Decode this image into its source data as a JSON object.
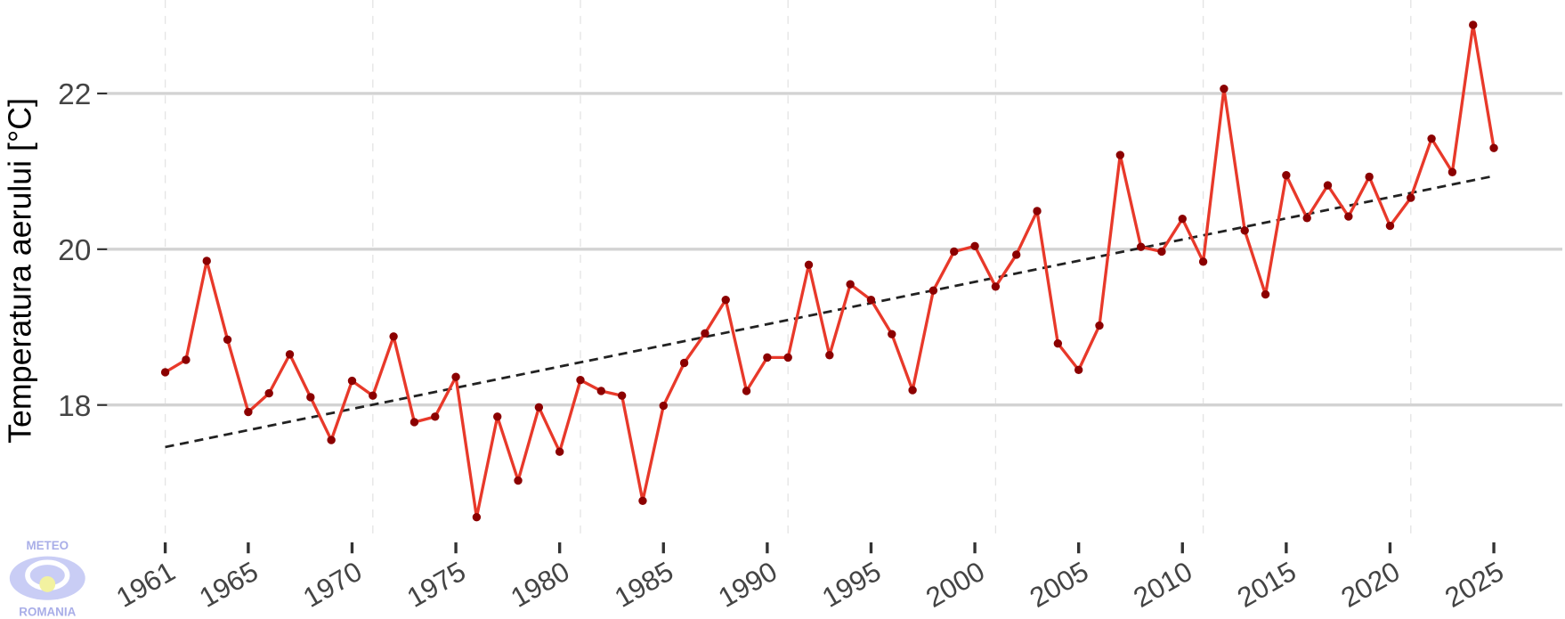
{
  "chart_data": {
    "type": "line",
    "y_label": "Temperatura aerului [°C]",
    "logo_top": "METEO",
    "logo_bottom": "ROMANIA",
    "x": [
      1961,
      1962,
      1963,
      1964,
      1965,
      1966,
      1967,
      1968,
      1969,
      1970,
      1971,
      1972,
      1973,
      1974,
      1975,
      1976,
      1977,
      1978,
      1979,
      1980,
      1981,
      1982,
      1983,
      1984,
      1985,
      1986,
      1987,
      1988,
      1989,
      1990,
      1991,
      1992,
      1993,
      1994,
      1995,
      1996,
      1997,
      1998,
      1999,
      2000,
      2001,
      2002,
      2003,
      2004,
      2005,
      2006,
      2007,
      2008,
      2009,
      2010,
      2011,
      2012,
      2013,
      2014,
      2015,
      2016,
      2017,
      2018,
      2019,
      2020,
      2021,
      2022,
      2023,
      2024,
      2025
    ],
    "series": [
      {
        "color": "#e8392a",
        "marker_color": "#8b0000",
        "values": [
          18.42,
          18.58,
          19.85,
          18.84,
          17.91,
          18.15,
          18.65,
          18.1,
          17.55,
          18.31,
          18.12,
          18.88,
          17.78,
          17.85,
          18.36,
          16.56,
          17.85,
          17.03,
          17.97,
          17.4,
          18.32,
          18.18,
          18.12,
          16.77,
          17.99,
          18.54,
          18.92,
          19.35,
          18.18,
          18.61,
          18.61,
          19.8,
          18.64,
          19.55,
          19.35,
          18.91,
          18.19,
          19.47,
          19.97,
          20.04,
          19.52,
          19.93,
          20.49,
          18.79,
          18.45,
          19.02,
          21.21,
          20.03,
          19.97,
          20.39,
          19.84,
          22.06,
          20.24,
          19.42,
          20.95,
          20.4,
          20.82,
          20.42,
          20.93,
          20.3,
          20.66,
          21.42,
          20.99,
          22.88,
          21.3
        ]
      }
    ],
    "trend": {
      "x": [
        1961,
        2025
      ],
      "values": [
        17.46,
        20.94
      ],
      "color": "#222222"
    },
    "xlim": [
      1958.2,
      2028.3
    ],
    "ylim": [
      16.3,
      23.2
    ],
    "xticks": [
      1961,
      1965,
      1970,
      1975,
      1980,
      1985,
      1990,
      1995,
      2000,
      2005,
      2010,
      2015,
      2020,
      2025
    ],
    "xgrid": [
      1961,
      1971,
      1981,
      1991,
      2001,
      2011,
      2021
    ],
    "yticks": [
      18,
      20,
      22
    ],
    "grid": true
  }
}
